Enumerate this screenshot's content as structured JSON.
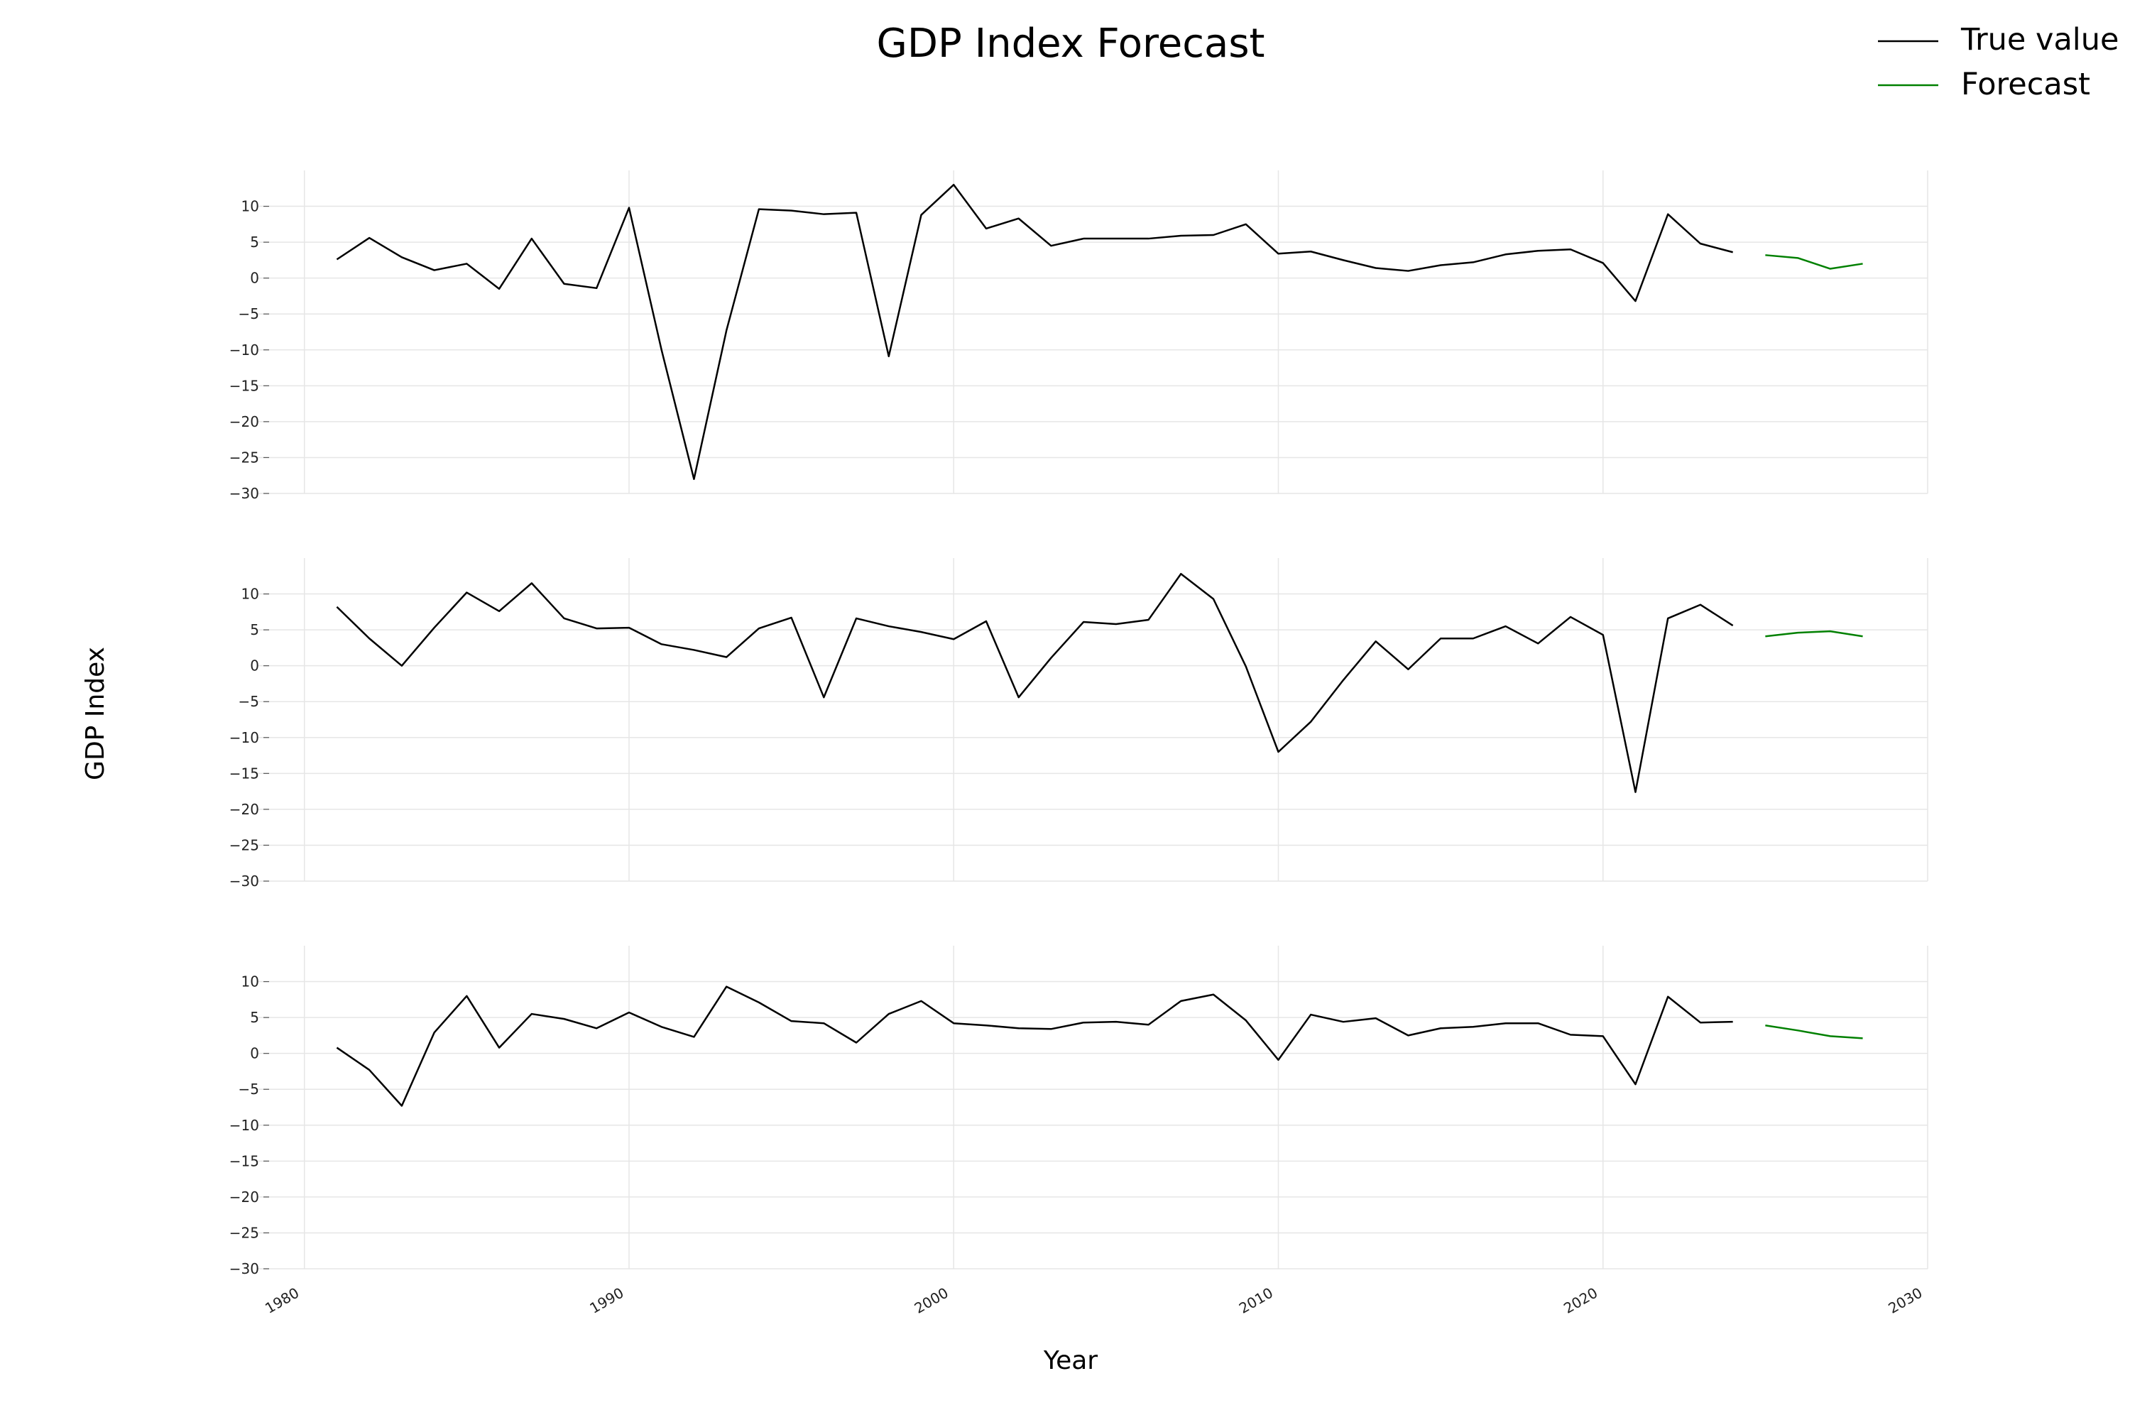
{
  "chart_data": {
    "type": "line",
    "title": "GDP Index Forecast",
    "xlabel": "Year",
    "ylabel": "GDP Index",
    "xlim": [
      1979,
      2030
    ],
    "ylim": [
      -30,
      15
    ],
    "x_ticks": [
      1980,
      1990,
      2000,
      2010,
      2020,
      2030
    ],
    "y_ticks": [
      10,
      5,
      0,
      -5,
      -10,
      -15,
      -20,
      -25,
      -30
    ],
    "grid": true,
    "legend": {
      "position": "top-right",
      "entries": [
        {
          "label": "True value",
          "color": "#000000"
        },
        {
          "label": "Forecast",
          "color": "#008000"
        }
      ]
    },
    "panels": [
      {
        "series": [
          {
            "name": "True value",
            "color": "#000000",
            "x": [
              1981,
              1982,
              1983,
              1984,
              1985,
              1986,
              1987,
              1988,
              1989,
              1990,
              1991,
              1992,
              1993,
              1994,
              1995,
              1996,
              1997,
              1998,
              1999,
              2000,
              2001,
              2002,
              2003,
              2004,
              2005,
              2006,
              2007,
              2008,
              2009,
              2010,
              2011,
              2012,
              2013,
              2014,
              2015,
              2016,
              2017,
              2018,
              2019,
              2020,
              2021,
              2022,
              2023,
              2024
            ],
            "values": [
              2.6,
              5.6,
              2.9,
              1.1,
              2.0,
              -1.5,
              5.5,
              -0.8,
              -1.4,
              9.8,
              -10.0,
              -28.0,
              -7.3,
              9.6,
              9.4,
              8.9,
              9.1,
              -10.9,
              8.8,
              13.0,
              6.9,
              8.3,
              4.5,
              5.5,
              5.5,
              5.5,
              5.9,
              6.0,
              7.5,
              3.4,
              3.7,
              2.5,
              1.4,
              1.0,
              1.8,
              2.2,
              3.3,
              3.8,
              4.0,
              2.1,
              -3.2,
              8.9,
              4.8,
              3.6
            ]
          },
          {
            "name": "Forecast",
            "color": "#008000",
            "x": [
              2025,
              2026,
              2027,
              2028
            ],
            "values": [
              3.2,
              2.8,
              1.3,
              2.0
            ]
          }
        ]
      },
      {
        "series": [
          {
            "name": "True value",
            "color": "#000000",
            "x": [
              1981,
              1982,
              1983,
              1984,
              1985,
              1986,
              1987,
              1988,
              1989,
              1990,
              1991,
              1992,
              1993,
              1994,
              1995,
              1996,
              1997,
              1998,
              1999,
              2000,
              2001,
              2002,
              2003,
              2004,
              2005,
              2006,
              2007,
              2008,
              2009,
              2010,
              2011,
              2012,
              2013,
              2014,
              2015,
              2016,
              2017,
              2018,
              2019,
              2020,
              2021,
              2022,
              2023,
              2024
            ],
            "values": [
              8.2,
              3.8,
              0.0,
              5.3,
              10.2,
              7.6,
              11.5,
              6.6,
              5.2,
              5.3,
              3.0,
              2.2,
              1.2,
              5.2,
              6.7,
              -4.4,
              6.6,
              5.5,
              4.7,
              3.7,
              6.2,
              -4.4,
              1.1,
              6.1,
              5.8,
              6.4,
              12.8,
              9.3,
              -0.1,
              -12.0,
              -7.8,
              -2.0,
              3.4,
              -0.5,
              3.8,
              3.8,
              5.5,
              3.1,
              6.8,
              4.3,
              -17.6,
              6.6,
              8.5,
              5.6
            ]
          },
          {
            "name": "Forecast",
            "color": "#008000",
            "x": [
              2025,
              2026,
              2027,
              2028
            ],
            "values": [
              4.1,
              4.6,
              4.8,
              4.1
            ]
          }
        ]
      },
      {
        "series": [
          {
            "name": "True value",
            "color": "#000000",
            "x": [
              1981,
              1982,
              1983,
              1984,
              1985,
              1986,
              1987,
              1988,
              1989,
              1990,
              1991,
              1992,
              1993,
              1994,
              1995,
              1996,
              1997,
              1998,
              1999,
              2000,
              2001,
              2002,
              2003,
              2004,
              2005,
              2006,
              2007,
              2008,
              2009,
              2010,
              2011,
              2012,
              2013,
              2014,
              2015,
              2016,
              2017,
              2018,
              2019,
              2020,
              2021,
              2022,
              2023,
              2024
            ],
            "values": [
              0.8,
              -2.3,
              -7.3,
              2.9,
              8.0,
              0.8,
              5.5,
              4.8,
              3.5,
              5.7,
              3.7,
              2.3,
              9.3,
              7.1,
              4.5,
              4.2,
              1.5,
              5.5,
              7.3,
              4.2,
              3.9,
              3.5,
              3.4,
              4.3,
              4.4,
              4.0,
              7.3,
              8.2,
              4.6,
              -0.9,
              5.4,
              4.4,
              4.9,
              2.5,
              3.5,
              3.7,
              4.2,
              4.2,
              2.6,
              2.4,
              -4.3,
              7.9,
              4.3,
              4.4
            ]
          },
          {
            "name": "Forecast",
            "color": "#008000",
            "x": [
              2025,
              2026,
              2027,
              2028
            ],
            "values": [
              3.9,
              3.2,
              2.4,
              2.1
            ]
          }
        ]
      }
    ]
  }
}
